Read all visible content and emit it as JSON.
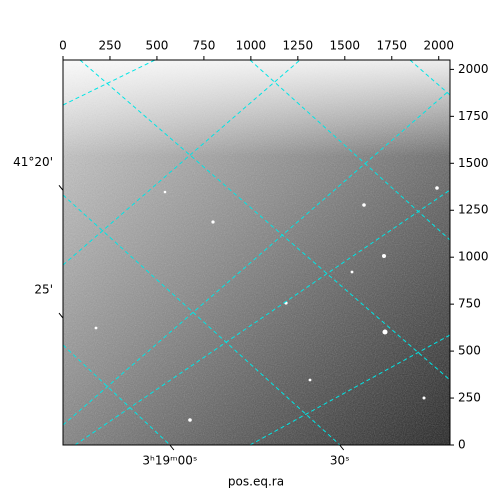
{
  "chart_data": {
    "type": "image",
    "xlabel": "pos.eq.ra",
    "xlim": [
      0,
      2060
    ],
    "ylim": [
      0,
      2050
    ],
    "xticks": [
      0,
      250,
      500,
      750,
      1000,
      1250,
      1500,
      1750,
      2000
    ],
    "yticks": [
      0,
      250,
      500,
      750,
      1000,
      1250,
      1500,
      1750,
      2000
    ],
    "ra_ticks": [
      {
        "value": 569,
        "label": "3ʰ19ᵐ00ˢ"
      },
      {
        "value": 1473,
        "label": "30ˢ"
      }
    ],
    "dec_ticks": [
      {
        "value": 1356,
        "label": "41°20'"
      },
      {
        "value": 676,
        "label": "25'"
      }
    ],
    "grid_color": "#00e5e5"
  }
}
